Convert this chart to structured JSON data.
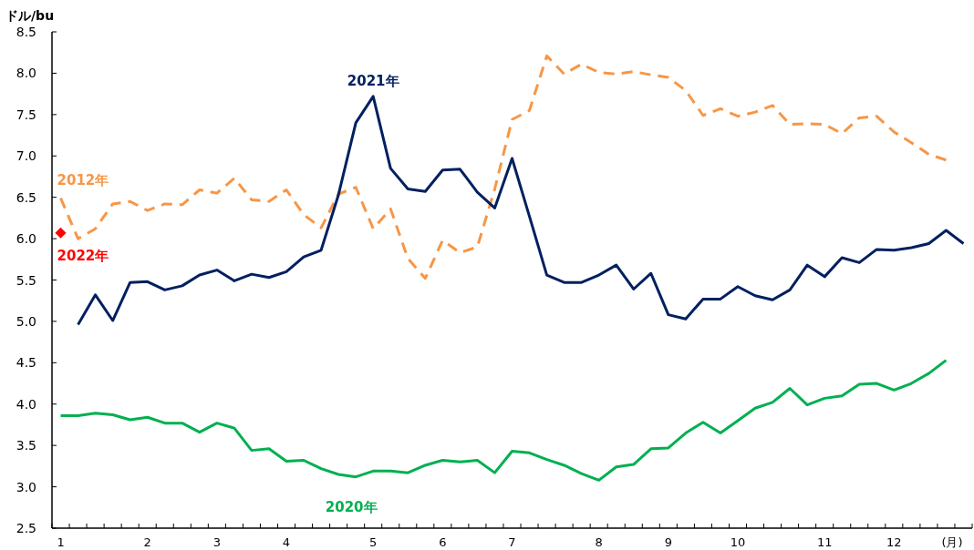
{
  "chart_data": {
    "type": "line",
    "xlabel": "(月)",
    "ylabel": "ドル/bu",
    "categories": [
      "1",
      null,
      null,
      null,
      null,
      "2",
      null,
      null,
      null,
      "3",
      null,
      null,
      null,
      "4",
      null,
      null,
      null,
      null,
      "5",
      null,
      null,
      null,
      "6",
      null,
      null,
      null,
      "7",
      null,
      null,
      null,
      null,
      "8",
      null,
      null,
      null,
      "9",
      null,
      null,
      null,
      "10",
      null,
      null,
      null,
      null,
      "11",
      null,
      null,
      null,
      "12",
      null,
      null,
      null,
      null
    ],
    "ylim": [
      2.5,
      8.5
    ],
    "yticks": [
      {
        "value": 2.5,
        "label": "2.5"
      },
      {
        "value": 3,
        "label": "3.0"
      },
      {
        "value": 3.5,
        "label": "3.5"
      },
      {
        "value": 4,
        "label": "4.0"
      },
      {
        "value": 4.5,
        "label": "4.5"
      },
      {
        "value": 5,
        "label": "5.0"
      },
      {
        "value": 5.5,
        "label": "5.5"
      },
      {
        "value": 6,
        "label": "6.0"
      },
      {
        "value": 6.5,
        "label": "6.5"
      },
      {
        "value": 7,
        "label": "7.0"
      },
      {
        "value": 7.5,
        "label": "7.5"
      },
      {
        "value": 8,
        "label": "8.0"
      },
      {
        "value": 8.5,
        "label": "8.5"
      }
    ],
    "series": [
      {
        "name": "2012年",
        "color": "#f79646",
        "line_style": "dashed",
        "marker": "none",
        "values": [
          6.49,
          6.0,
          6.12,
          6.42,
          6.45,
          6.34,
          6.42,
          6.41,
          6.59,
          6.55,
          6.73,
          6.47,
          6.45,
          6.59,
          6.29,
          6.13,
          6.54,
          6.62,
          6.12,
          6.36,
          5.76,
          5.52,
          5.98,
          5.83,
          5.9,
          6.6,
          7.44,
          7.55,
          8.21,
          7.99,
          8.11,
          8.01,
          7.99,
          8.02,
          7.98,
          7.95,
          7.79,
          7.49,
          7.57,
          7.48,
          7.53,
          7.61,
          7.38,
          7.39,
          7.38,
          7.27,
          7.46,
          7.48,
          7.29,
          7.16,
          7.02,
          6.95,
          null
        ]
      },
      {
        "name": "2021年",
        "color": "#002060",
        "line_style": "solid",
        "marker": "none",
        "values": [
          null,
          4.96,
          5.32,
          5.01,
          5.47,
          5.48,
          5.38,
          5.43,
          5.56,
          5.62,
          5.49,
          5.57,
          5.53,
          5.6,
          5.78,
          5.86,
          6.53,
          7.4,
          7.72,
          6.85,
          6.6,
          6.57,
          6.83,
          6.84,
          6.56,
          6.37,
          6.97,
          6.27,
          5.56,
          5.47,
          5.47,
          5.56,
          5.68,
          5.39,
          5.58,
          5.08,
          5.03,
          5.27,
          5.27,
          5.42,
          5.31,
          5.26,
          5.38,
          5.68,
          5.54,
          5.77,
          5.71,
          5.87,
          5.86,
          5.89,
          5.94,
          6.1,
          5.94
        ]
      },
      {
        "name": "2020年",
        "color": "#00b050",
        "line_style": "solid",
        "marker": "none",
        "values": [
          3.86,
          3.86,
          3.89,
          3.87,
          3.81,
          3.84,
          3.77,
          3.77,
          3.66,
          3.77,
          3.71,
          3.44,
          3.46,
          3.31,
          3.32,
          3.22,
          3.15,
          3.12,
          3.19,
          3.19,
          3.17,
          3.26,
          3.32,
          3.3,
          3.32,
          3.17,
          3.43,
          3.41,
          3.33,
          3.26,
          3.16,
          3.08,
          3.24,
          3.27,
          3.46,
          3.47,
          3.65,
          3.78,
          3.65,
          3.8,
          3.95,
          4.02,
          4.19,
          3.99,
          4.07,
          4.1,
          4.24,
          4.25,
          4.17,
          4.25,
          4.37,
          4.53,
          null
        ]
      },
      {
        "name": "2022年",
        "color": "#ff0000",
        "marker": "diamond",
        "values": [
          6.07,
          null,
          null,
          null,
          null,
          null,
          null,
          null,
          null,
          null,
          null,
          null,
          null,
          null,
          null,
          null,
          null,
          null,
          null,
          null,
          null,
          null,
          null,
          null,
          null,
          null,
          null,
          null,
          null,
          null,
          null,
          null,
          null,
          null,
          null,
          null,
          null,
          null,
          null,
          null,
          null,
          null,
          null,
          null,
          null,
          null,
          null,
          null,
          null,
          null,
          null,
          null,
          null
        ]
      }
    ]
  }
}
